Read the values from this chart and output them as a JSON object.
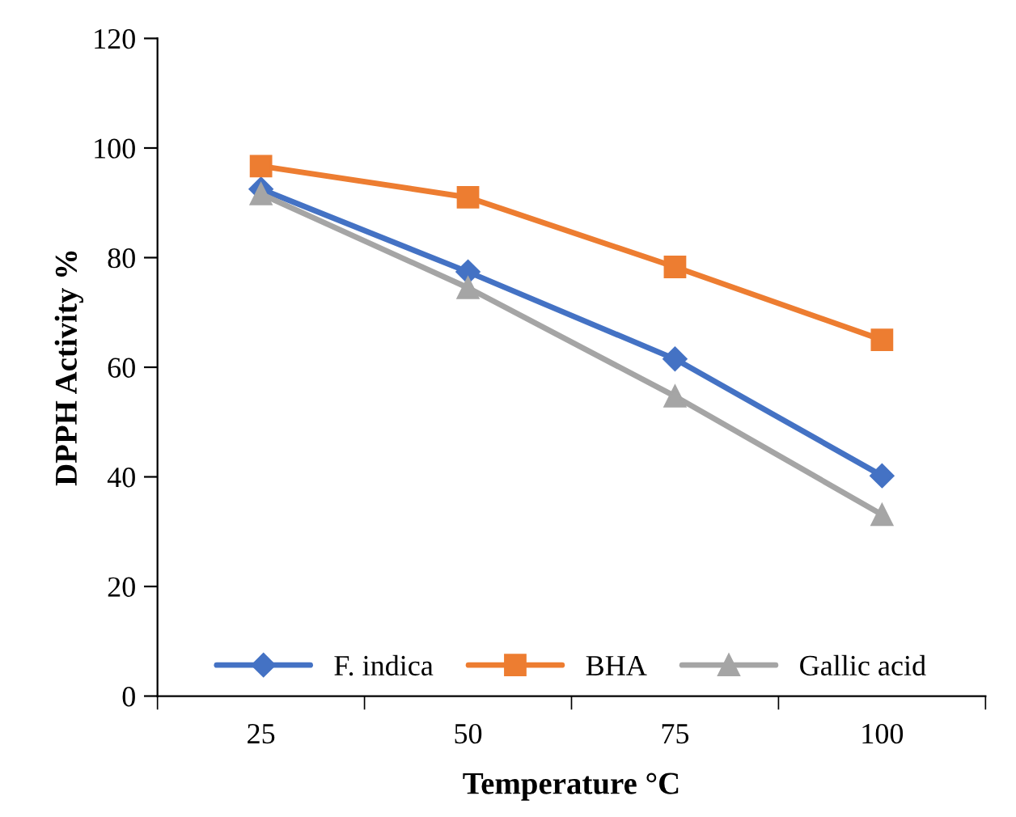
{
  "chart_data": {
    "type": "line",
    "xlabel": "Temperature °C",
    "ylabel": "DPPH Activity %",
    "categories": [
      "25",
      "50",
      "75",
      "100"
    ],
    "series": [
      {
        "name": "F. indica",
        "color": "#4472c4",
        "marker": "diamond",
        "values": [
          92.5,
          77.4,
          61.5,
          40.2
        ]
      },
      {
        "name": "BHA",
        "color": "#ed7d31",
        "marker": "square",
        "values": [
          96.7,
          91.0,
          78.3,
          65.0
        ]
      },
      {
        "name": "Gallic acid",
        "color": "#a5a5a5",
        "marker": "triangle",
        "values": [
          91.6,
          74.5,
          54.7,
          33.1
        ]
      }
    ],
    "ylim": [
      0,
      120
    ],
    "yticks": [
      0,
      20,
      40,
      60,
      80,
      100,
      120
    ],
    "grid": false,
    "legend": "bottom",
    "line_style": "solid"
  }
}
